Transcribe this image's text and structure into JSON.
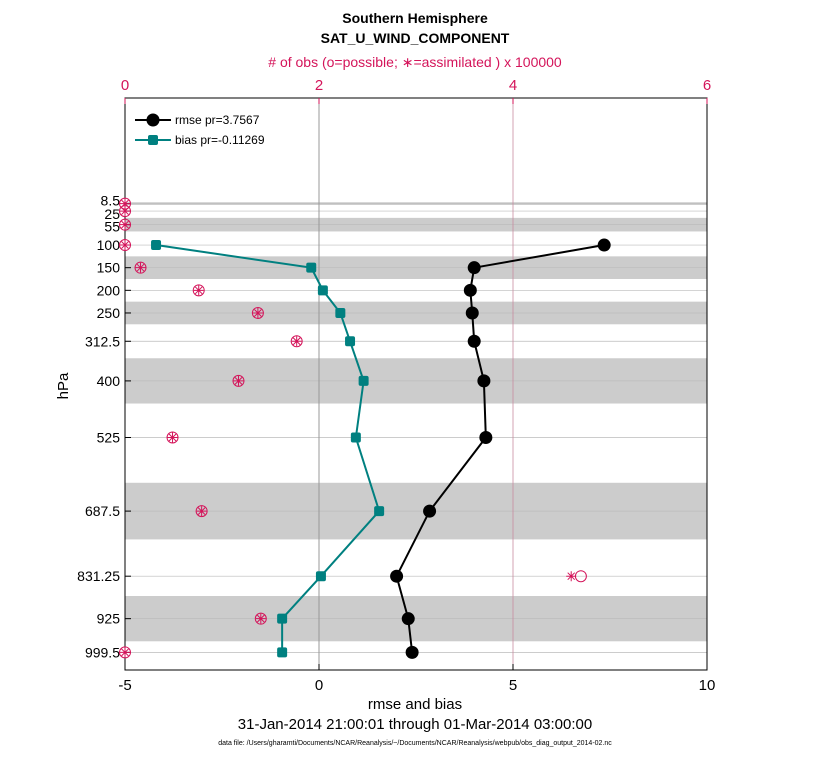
{
  "chart_data": {
    "type": "line",
    "title": "Southern Hemisphere",
    "subtitle": "SAT_U_WIND_COMPONENT",
    "top_axis_label": "# of obs (o=possible; ∗=assimilated ) x 100000",
    "xlabel": "rmse and bias",
    "ylabel": "hPa",
    "date_range": "31-Jan-2014 21:00:01 through 01-Mar-2014 03:00:00",
    "footnote": "data file: /Users/gharamti/Documents/NCAR/Reanalysis/~/Documents/NCAR/Reanalysis/webpub/obs_diag_output_2014-02.nc",
    "xlim": [
      -5,
      10
    ],
    "x_ticks": [
      "-5",
      "0",
      "5",
      "10"
    ],
    "top_xlim": [
      0,
      6
    ],
    "top_ticks": [
      "0",
      "2",
      "4",
      "6"
    ],
    "y_levels": [
      8.5,
      25,
      55,
      100,
      150,
      200,
      250,
      312.5,
      400,
      525,
      687.5,
      831.25,
      925,
      999.5
    ],
    "y_tick_labels": [
      "8.5",
      "25",
      "55",
      "100",
      "150",
      "200",
      "250",
      "312.5",
      "400",
      "525",
      "687.5",
      "831.25",
      "925",
      "999.5"
    ],
    "legend_position": "top-left",
    "series": [
      {
        "name": "rmse pr=3.7567",
        "color": "#000000",
        "marker": "circle",
        "levels": [
          100,
          150,
          200,
          250,
          312.5,
          400,
          525,
          687.5,
          831.25,
          925,
          999.5
        ],
        "values": [
          7.35,
          4.0,
          3.9,
          3.95,
          4.0,
          4.25,
          4.3,
          2.85,
          2.0,
          2.3,
          2.4
        ]
      },
      {
        "name": "bias pr=-0.11269",
        "color": "#008080",
        "marker": "square",
        "levels": [
          100,
          150,
          200,
          250,
          312.5,
          400,
          525,
          687.5,
          831.25,
          925,
          999.5
        ],
        "values": [
          -4.2,
          -0.2,
          0.1,
          0.55,
          0.8,
          1.15,
          0.95,
          1.55,
          0.05,
          -0.95,
          -0.95
        ]
      }
    ],
    "obs_counts": {
      "color": "#d4145a",
      "levels": [
        8.5,
        25,
        55,
        100,
        150,
        200,
        250,
        312.5,
        400,
        525,
        687.5,
        831.25,
        925,
        999.5
      ],
      "possible": [
        0.0,
        0.0,
        0.0,
        0.0,
        0.16,
        0.76,
        1.37,
        1.77,
        1.17,
        0.49,
        0.79,
        4.7,
        1.4,
        0.0
      ],
      "assimilated": [
        0.0,
        0.0,
        0.0,
        0.0,
        0.16,
        0.76,
        1.37,
        1.77,
        1.17,
        0.49,
        0.79,
        4.6,
        1.4,
        0.0
      ]
    },
    "shaded_bands": [
      [
        5.5,
        11.5
      ],
      [
        40,
        70
      ],
      [
        125,
        175
      ],
      [
        225,
        275
      ],
      [
        350,
        450
      ],
      [
        625,
        750
      ],
      [
        875,
        975
      ]
    ]
  }
}
